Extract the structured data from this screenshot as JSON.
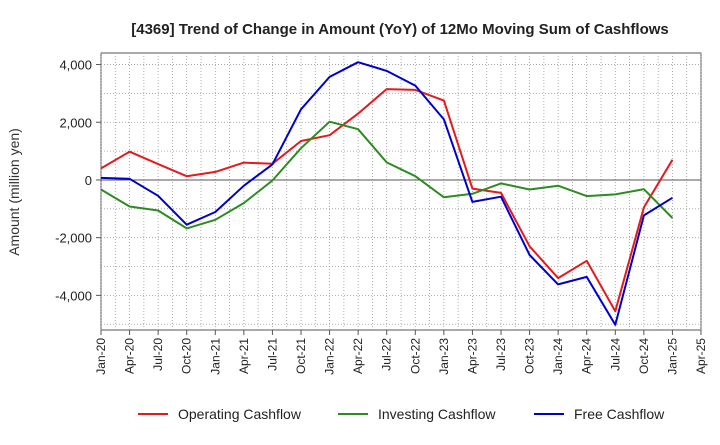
{
  "chart_data": {
    "type": "line",
    "title": "[4369]  Trend of Change in Amount (YoY) of 12Mo Moving Sum of Cashflows",
    "xlabel": "",
    "ylabel": "Amount (million yen)",
    "ylim": [
      -5200,
      4400
    ],
    "yticks": [
      4000,
      2000,
      0,
      -2000,
      -4000
    ],
    "ytick_labels": [
      "4,000",
      "2,000",
      "0",
      "-2,000",
      "-4,000"
    ],
    "xtick_labels": [
      "Jan-20",
      "Apr-20",
      "Jul-20",
      "Oct-20",
      "Jan-21",
      "Apr-21",
      "Jul-21",
      "Oct-21",
      "Jan-22",
      "Apr-22",
      "Jul-22",
      "Oct-22",
      "Jan-23",
      "Apr-23",
      "Jul-23",
      "Oct-23",
      "Jan-24",
      "Apr-24",
      "Jul-24",
      "Oct-24",
      "Jan-25",
      "Apr-25"
    ],
    "legend_position": "bottom",
    "grid": true,
    "series": [
      {
        "name": "Operating Cashflow",
        "color": "#e41a1c",
        "values": [
          400,
          980,
          550,
          130,
          280,
          600,
          560,
          1350,
          1550,
          2300,
          3150,
          3120,
          2750,
          -300,
          -450,
          -2300,
          -3400,
          -2800,
          -4550,
          -950,
          700
        ]
      },
      {
        "name": "Investing Cashflow",
        "color": "#2e8b22",
        "values": [
          -330,
          -920,
          -1060,
          -1680,
          -1380,
          -800,
          -20,
          1100,
          2020,
          1760,
          610,
          130,
          -600,
          -480,
          -120,
          -330,
          -200,
          -560,
          -500,
          -320,
          -1320
        ]
      },
      {
        "name": "Free Cashflow",
        "color": "#0000cc",
        "values": [
          70,
          40,
          -550,
          -1550,
          -1110,
          -200,
          540,
          2450,
          3570,
          4080,
          3780,
          3270,
          2100,
          -760,
          -580,
          -2600,
          -3620,
          -3360,
          -5020,
          -1230,
          -620
        ]
      }
    ]
  }
}
